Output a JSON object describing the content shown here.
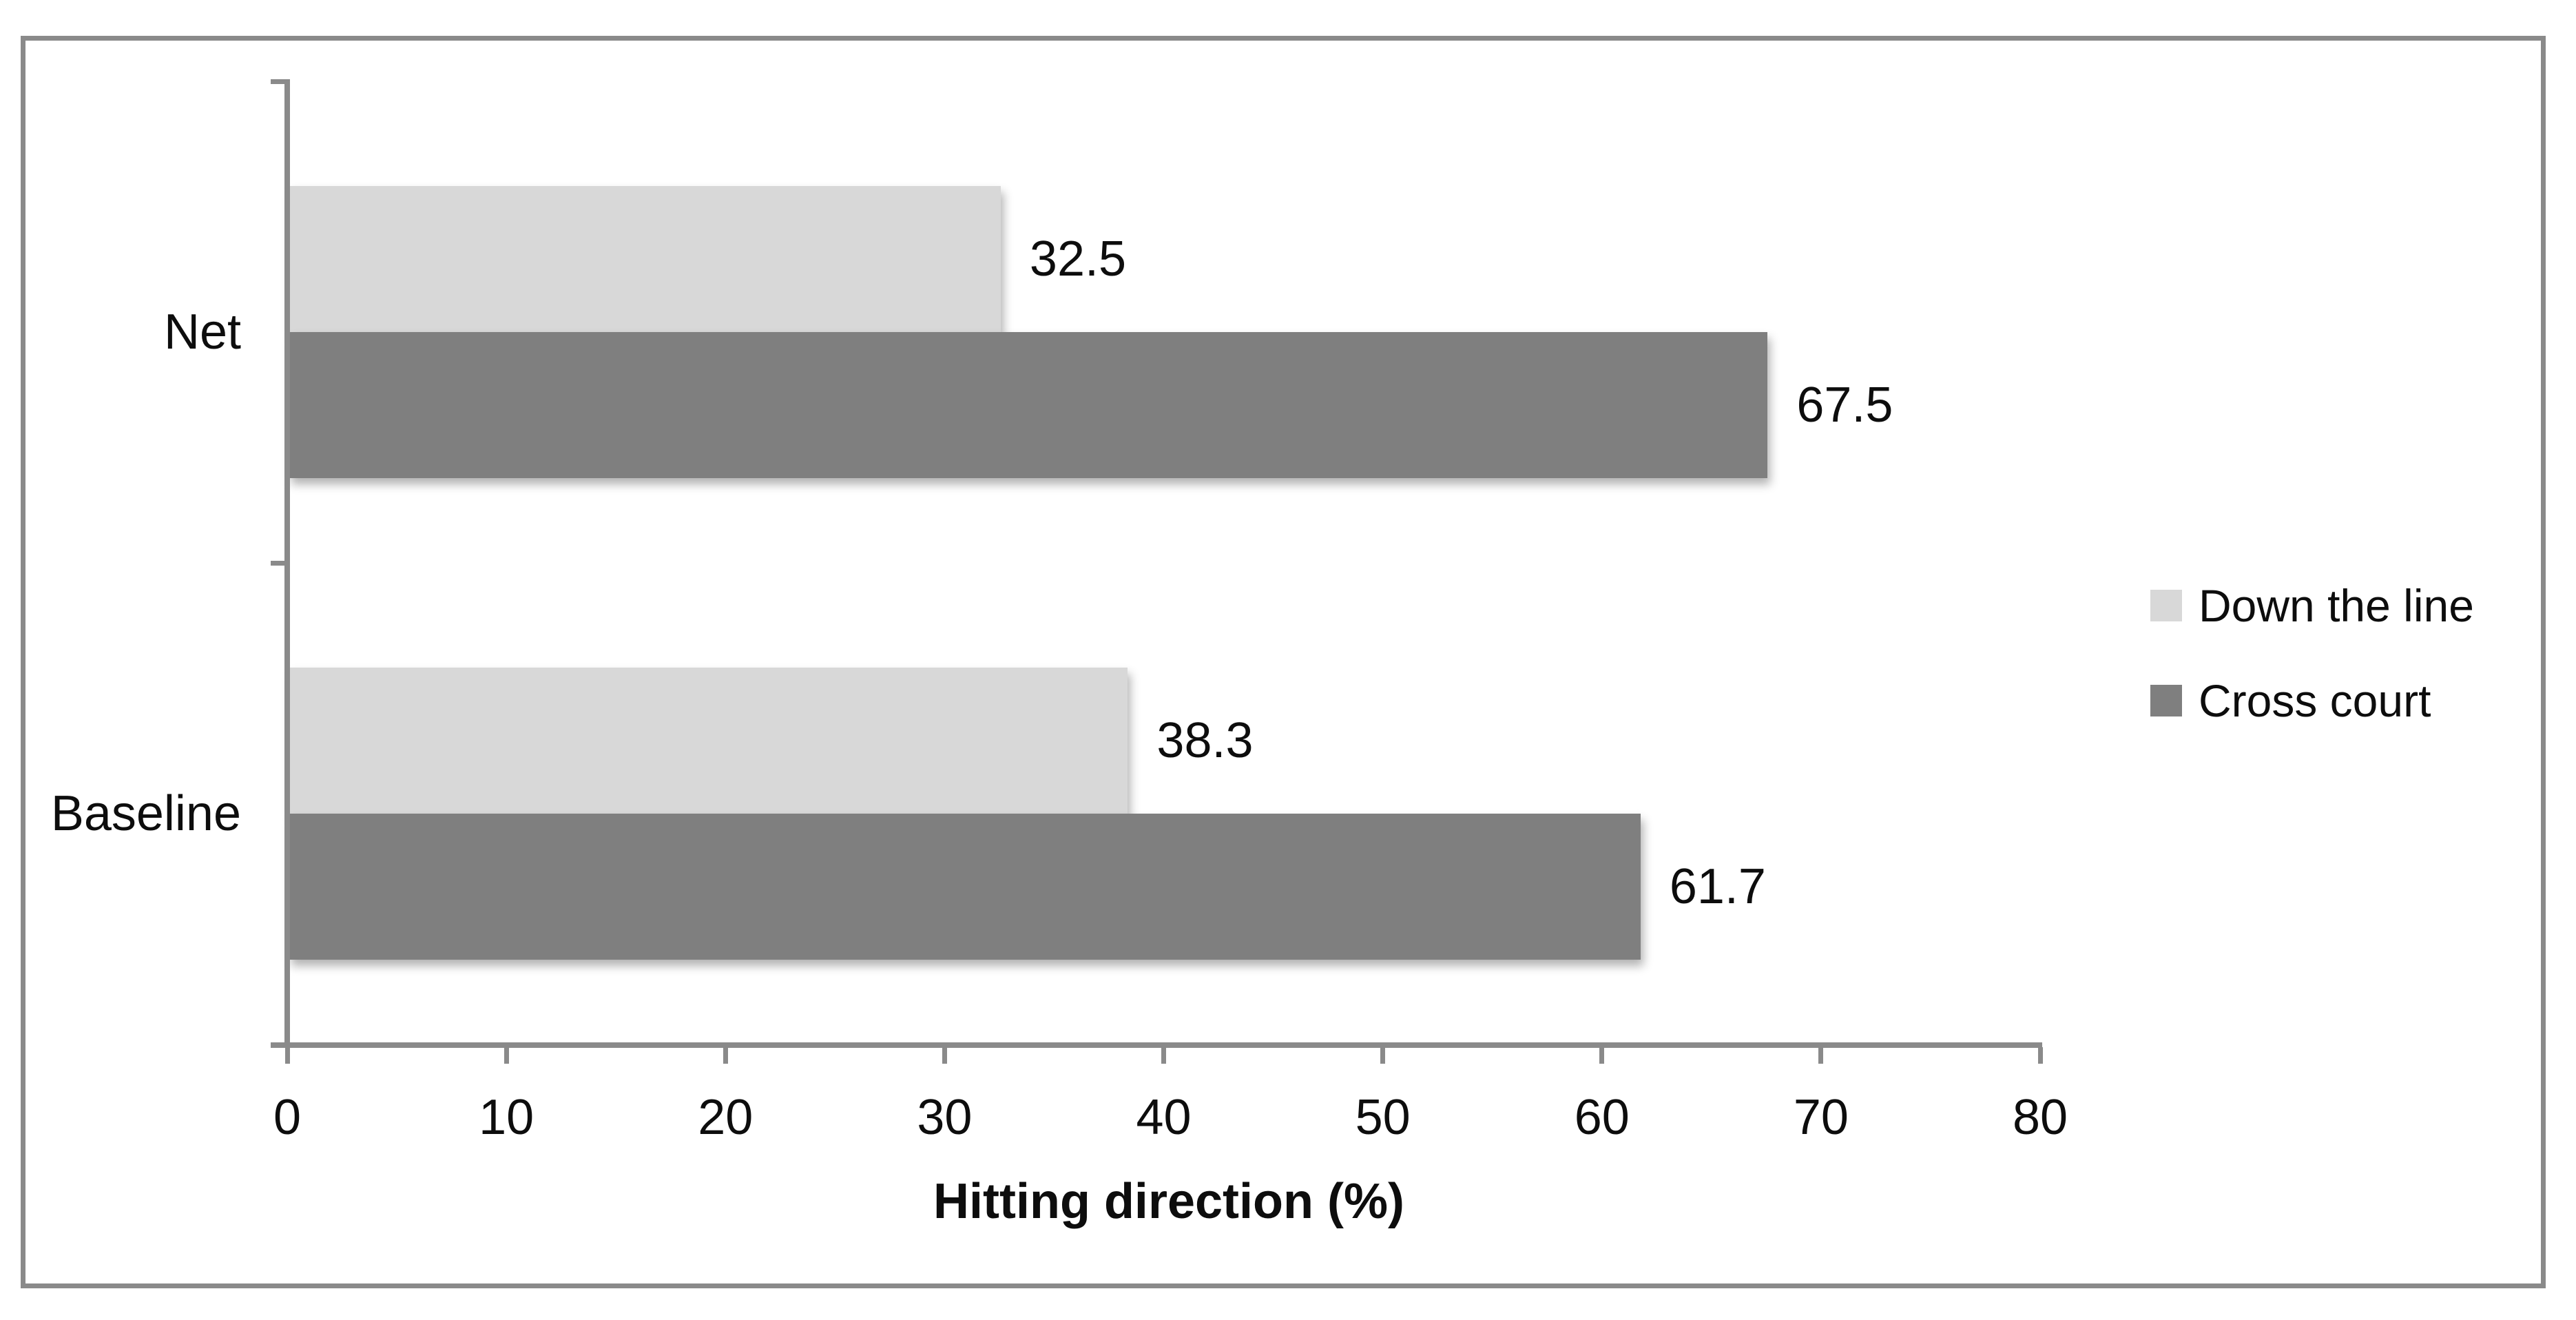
{
  "chart_data": {
    "type": "bar",
    "orientation": "horizontal",
    "title": "",
    "categories": [
      "Net",
      "Baseline"
    ],
    "series": [
      {
        "name": "Down the line",
        "color": "#d8d8d8",
        "values": [
          32.5,
          38.3
        ]
      },
      {
        "name": "Cross court",
        "color": "#7f7f7f",
        "values": [
          67.5,
          61.7
        ]
      }
    ],
    "value_labels": {
      "Down the line": [
        "32.5",
        "38.3"
      ],
      "Cross court": [
        "67.5",
        "61.7"
      ]
    },
    "xlabel": "Hitting direction (%)",
    "ylabel": "",
    "xlim": [
      0,
      80
    ],
    "xticks": [
      "0",
      "10",
      "20",
      "30",
      "40",
      "50",
      "60",
      "70",
      "80"
    ],
    "grid": false,
    "legend_position": "middle-right",
    "bar_label_position": "outside-end",
    "colors": {
      "axis_line": "#8a8a8a",
      "figure_border": "#8a8a8a",
      "text": "#0d0d0d",
      "background": "#ffffff"
    }
  }
}
